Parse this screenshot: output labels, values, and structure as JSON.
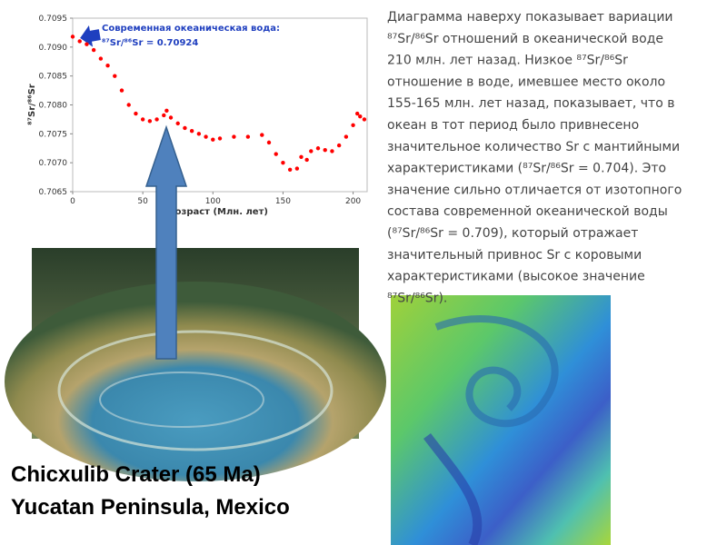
{
  "chart_data": {
    "type": "scatter",
    "x_label": "Возраст (Млн. лет)",
    "y_label": "⁸⁷Sr/⁸⁶Sr",
    "annotation": [
      "Современная океаническая вода:",
      "⁸⁷Sr/⁸⁶Sr = 0.70924"
    ],
    "color": "#ff0000",
    "x": [
      0,
      5,
      10,
      15,
      20,
      25,
      30,
      35,
      40,
      45,
      50,
      55,
      60,
      65,
      67,
      70,
      75,
      80,
      85,
      90,
      95,
      100,
      105,
      115,
      125,
      135,
      140,
      145,
      150,
      155,
      160,
      163,
      167,
      170,
      175,
      180,
      185,
      190,
      195,
      200,
      203,
      205,
      208
    ],
    "values": [
      0.70918,
      0.7091,
      0.70905,
      0.70895,
      0.7088,
      0.70868,
      0.7085,
      0.70825,
      0.708,
      0.70785,
      0.70775,
      0.70772,
      0.70775,
      0.70782,
      0.7079,
      0.70778,
      0.70768,
      0.7076,
      0.70755,
      0.7075,
      0.70745,
      0.7074,
      0.70742,
      0.70745,
      0.70745,
      0.70748,
      0.70735,
      0.70715,
      0.707,
      0.70688,
      0.7069,
      0.7071,
      0.70705,
      0.7072,
      0.70725,
      0.70722,
      0.7072,
      0.7073,
      0.70745,
      0.70765,
      0.70785,
      0.7078,
      0.70775
    ],
    "xlim": [
      0,
      210
    ],
    "xticks": [
      0,
      50,
      100,
      150,
      200
    ],
    "ylim": [
      0.7065,
      0.7095
    ],
    "yticks": [
      0.7065,
      {
        "value": 0.707,
        "label": "0.7070"
      },
      0.7075,
      {
        "value": 0.708,
        "label": "0.7080"
      },
      0.7085,
      {
        "value": 0.709,
        "label": "0.7090"
      },
      0.7095
    ]
  },
  "paragraph": {
    "lines": [
      "Диаграмма наверху показывает вариации",
      "⁸⁷Sr/⁸⁶Sr отношений в океанической воде",
      "210 млн. лет назад. Низкое ⁸⁷Sr/⁸⁶Sr",
      "отношение в воде, имевшее место около",
      "155-165 млн. лет назад, показывает, что в",
      "океан в тот период было привнесено",
      "значительное количество Sr с мантийными",
      "характеристиками (⁸⁷Sr/⁸⁶Sr = 0.704). Это",
      "значение сильно отличается от изотопного",
      "состава современной океанической воды",
      "(⁸⁷Sr/⁸⁶Sr = 0.709), который отражает",
      "значительный привнос Sr с коровыми",
      "характеристиками (высокое значение",
      "⁸⁷Sr/⁸⁶Sr)."
    ]
  },
  "caption": [
    "Chicxulib Crater (65 Ma)",
    "Yucatan Peninsula, Mexico"
  ]
}
